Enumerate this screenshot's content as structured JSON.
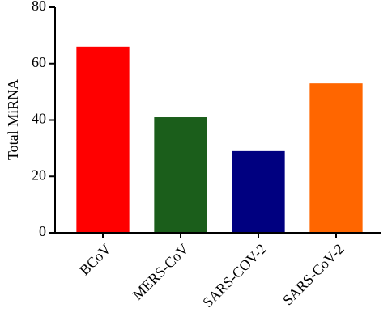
{
  "chart_data": {
    "type": "bar",
    "y_label": "Total MiRNA",
    "categories": [
      "BCoV",
      "MERS-CoV",
      "SARS-COV-2",
      "SARS-CoV-2"
    ],
    "values": [
      66,
      41,
      29,
      53
    ],
    "colors": [
      "#ff0000",
      "#1b5e1b",
      "#000080",
      "#ff6600"
    ],
    "ylim": [
      0,
      80
    ],
    "yticks": [
      0,
      20,
      40,
      60,
      80
    ]
  }
}
